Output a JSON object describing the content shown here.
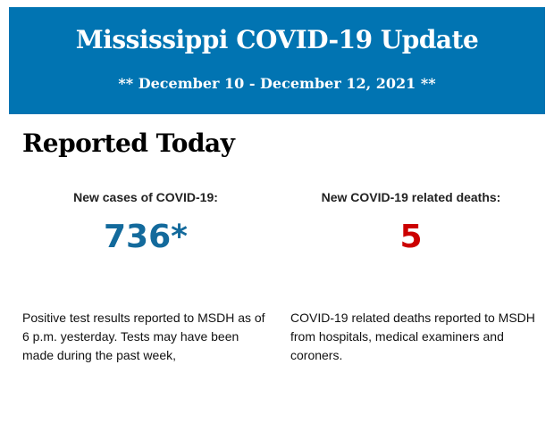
{
  "banner": {
    "title": "Mississippi COVID-19 Update",
    "subtitle": "** December 10 - December 12, 2021 **",
    "color": "#0174b2"
  },
  "section_title": "Reported Today",
  "cases": {
    "label": "New cases of COVID-19:",
    "value": "736*",
    "color": "#136a9c",
    "note": "Positive test results reported to MSDH as of 6 p.m. yesterday. Tests may have been made during the past week,"
  },
  "deaths": {
    "label": "New COVID-19 related deaths:",
    "value": "5",
    "color": "#cc0000",
    "note": "COVID-19 related deaths reported to MSDH from hospitals, medical examiners and coroners."
  }
}
